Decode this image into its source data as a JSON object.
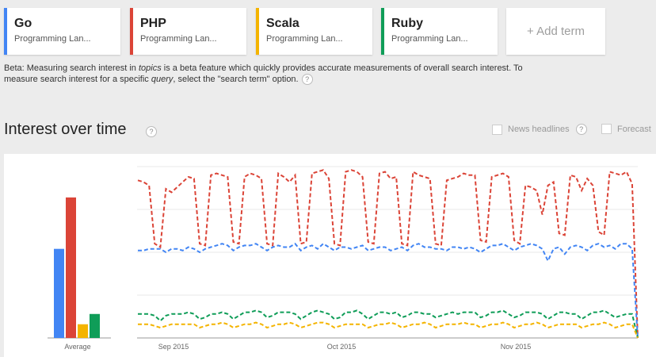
{
  "terms": [
    {
      "name": "Go",
      "type": "Programming Lan...",
      "color": "#4285f4"
    },
    {
      "name": "PHP",
      "type": "Programming Lan...",
      "color": "#db4437"
    },
    {
      "name": "Scala",
      "type": "Programming Lan...",
      "color": "#f4b400"
    },
    {
      "name": "Ruby",
      "type": "Programming Lan...",
      "color": "#0f9d58"
    }
  ],
  "add_term_label": "+ Add term",
  "beta": {
    "p1": "Beta: Measuring search interest in ",
    "em1": "topics",
    "p2": " is a beta feature which quickly provides accurate measurements of overall search interest. To measure search interest for a specific ",
    "em2": "query",
    "p3": ", select the \"search term\" option."
  },
  "help_glyph": "?",
  "section_title": "Interest over time",
  "options": {
    "news_headlines": "News headlines",
    "forecast": "Forecast"
  },
  "chart_data": {
    "type": "line",
    "average_bars": {
      "label": "Average",
      "values": [
        {
          "term": "Go",
          "value": 52
        },
        {
          "term": "PHP",
          "value": 82
        },
        {
          "term": "Scala",
          "value": 8
        },
        {
          "term": "Ruby",
          "value": 14
        }
      ]
    },
    "x_ticks": [
      "Sep 2015",
      "Oct 2015",
      "Nov 2015"
    ],
    "grid": true,
    "ylim": [
      0,
      100
    ],
    "series": [
      {
        "name": "PHP",
        "color": "#db4437",
        "values": [
          92,
          91,
          89,
          55,
          53,
          87,
          85,
          88,
          91,
          94,
          93,
          55,
          54,
          95,
          96,
          95,
          94,
          56,
          55,
          94,
          96,
          95,
          93,
          55,
          54,
          96,
          94,
          91,
          95,
          55,
          56,
          96,
          97,
          98,
          93,
          55,
          54,
          97,
          98,
          97,
          94,
          56,
          55,
          96,
          97,
          93,
          94,
          55,
          54,
          97,
          95,
          94,
          93,
          55,
          54,
          92,
          93,
          94,
          96,
          95,
          95,
          57,
          56,
          94,
          95,
          96,
          94,
          57,
          55,
          89,
          88,
          86,
          72,
          89,
          91,
          61,
          60,
          95,
          94,
          86,
          93,
          89,
          62,
          60,
          97,
          96,
          95,
          97,
          90,
          0
        ]
      },
      {
        "name": "Go",
        "color": "#4285f4",
        "values": [
          51,
          51,
          52,
          52,
          52,
          50,
          52,
          52,
          51,
          53,
          52,
          50,
          52,
          53,
          54,
          55,
          54,
          51,
          53,
          54,
          54,
          55,
          53,
          51,
          53,
          54,
          53,
          53,
          55,
          51,
          53,
          54,
          52,
          55,
          53,
          51,
          53,
          53,
          52,
          53,
          54,
          51,
          52,
          53,
          53,
          51,
          52,
          53,
          51,
          54,
          55,
          53,
          53,
          52,
          52,
          51,
          53,
          53,
          52,
          53,
          52,
          50,
          52,
          54,
          54,
          55,
          53,
          51,
          53,
          54,
          55,
          54,
          52,
          45,
          52,
          53,
          49,
          53,
          54,
          53,
          51,
          54,
          55,
          53,
          54,
          52,
          55,
          55,
          52,
          0
        ]
      },
      {
        "name": "Ruby",
        "color": "#0f9d58",
        "values": [
          14,
          14,
          14,
          13,
          10,
          13,
          14,
          14,
          14,
          15,
          14,
          11,
          12,
          14,
          14,
          15,
          14,
          11,
          13,
          15,
          15,
          16,
          15,
          12,
          13,
          15,
          15,
          15,
          14,
          11,
          13,
          15,
          16,
          15,
          14,
          11,
          12,
          15,
          15,
          16,
          14,
          11,
          13,
          15,
          15,
          14,
          15,
          12,
          13,
          15,
          15,
          14,
          14,
          12,
          13,
          14,
          15,
          14,
          15,
          15,
          15,
          12,
          13,
          15,
          15,
          16,
          14,
          12,
          13,
          15,
          15,
          15,
          14,
          11,
          13,
          15,
          15,
          14,
          14,
          11,
          13,
          15,
          15,
          16,
          14,
          12,
          13,
          14,
          14,
          0
        ]
      },
      {
        "name": "Scala",
        "color": "#f4b400",
        "values": [
          8,
          8,
          8,
          7,
          6,
          7,
          8,
          8,
          8,
          8,
          8,
          6,
          7,
          8,
          8,
          9,
          8,
          6,
          7,
          8,
          8,
          9,
          8,
          6,
          7,
          8,
          8,
          9,
          8,
          6,
          7,
          8,
          9,
          9,
          8,
          6,
          7,
          8,
          8,
          8,
          8,
          6,
          7,
          8,
          8,
          9,
          8,
          6,
          7,
          8,
          8,
          9,
          8,
          6,
          7,
          8,
          8,
          8,
          9,
          8,
          8,
          6,
          7,
          8,
          8,
          9,
          8,
          6,
          7,
          8,
          8,
          9,
          8,
          6,
          7,
          8,
          8,
          8,
          8,
          6,
          7,
          8,
          8,
          9,
          8,
          6,
          7,
          8,
          8,
          0
        ]
      }
    ]
  }
}
